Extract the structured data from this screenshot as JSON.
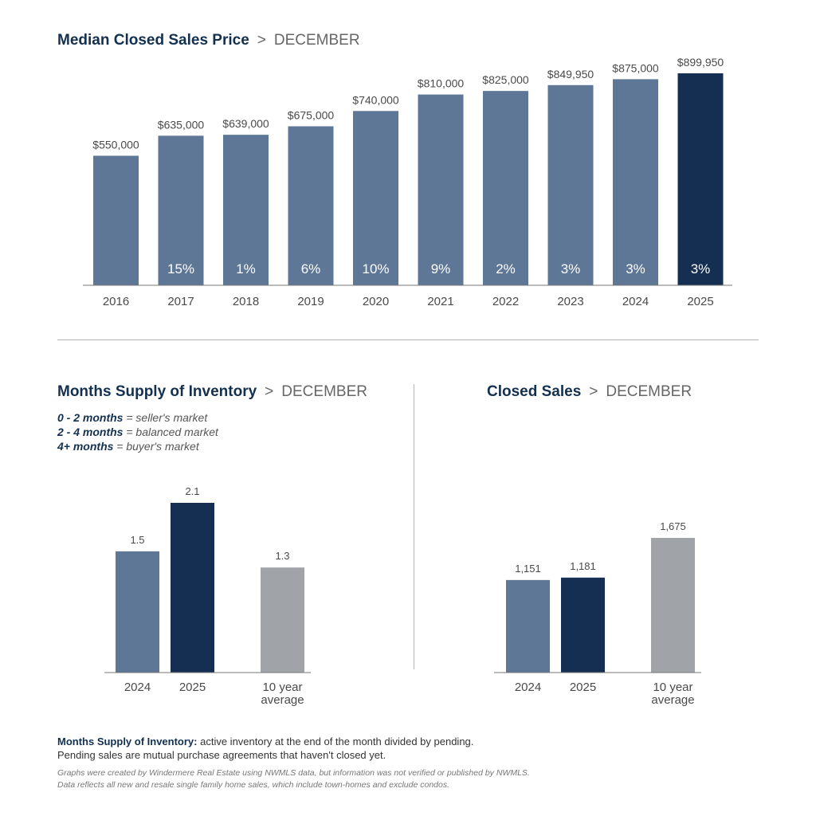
{
  "colors": {
    "bar_prior": "#5e7796",
    "bar_current": "#142f52",
    "bar_average": "#a0a4a9",
    "axis": "#777777",
    "title": "#13304f"
  },
  "sections": {
    "separator": ">"
  },
  "chart_data": [
    {
      "type": "bar",
      "title": "Median Closed Sales Price",
      "subtitle": "DECEMBER",
      "categories": [
        "2016",
        "2017",
        "2018",
        "2019",
        "2020",
        "2021",
        "2022",
        "2023",
        "2024",
        "2025"
      ],
      "values": [
        550000,
        635000,
        639000,
        675000,
        740000,
        810000,
        825000,
        849950,
        875000,
        899950
      ],
      "value_labels": [
        "$550,000",
        "$635,000",
        "$639,000",
        "$675,000",
        "$740,000",
        "$810,000",
        "$825,000",
        "$849,950",
        "$875,000",
        "$899,950"
      ],
      "pct_change_labels": [
        "",
        "15%",
        "1%",
        "6%",
        "10%",
        "9%",
        "2%",
        "3%",
        "3%",
        "3%"
      ],
      "ylim": [
        0,
        900000
      ],
      "grid": false,
      "highlight_last": true
    },
    {
      "type": "bar",
      "title": "Months Supply of Inventory",
      "subtitle": "DECEMBER",
      "categories": [
        "2024",
        "2025",
        "10 year average"
      ],
      "category_lines": [
        [
          "2024"
        ],
        [
          "2025"
        ],
        [
          "10 year",
          "average"
        ]
      ],
      "values": [
        1.5,
        2.1,
        1.3
      ],
      "value_labels": [
        "1.5",
        "2.1",
        "1.3"
      ],
      "ylim": [
        0,
        2.1
      ],
      "grid": false
    },
    {
      "type": "bar",
      "title": "Closed Sales",
      "subtitle": "DECEMBER",
      "categories": [
        "2024",
        "2025",
        "10 year average"
      ],
      "category_lines": [
        [
          "2024"
        ],
        [
          "2025"
        ],
        [
          "10 year",
          "average"
        ]
      ],
      "values": [
        1151,
        1181,
        1675
      ],
      "value_labels": [
        "1,151",
        "1,181",
        "1,675"
      ],
      "ylim": [
        0,
        1675
      ],
      "grid": false
    }
  ],
  "legend": [
    {
      "range": "0 - 2 months",
      "meaning": "= seller's market"
    },
    {
      "range": "2 - 4 months",
      "meaning": "= balanced market"
    },
    {
      "range": "4+ months",
      "meaning": "= buyer's market"
    }
  ],
  "note": {
    "label": "Months Supply of Inventory:",
    "text": " active inventory at the end of the month divided by pending.",
    "line2": "Pending sales are mutual purchase agreements that haven't closed yet."
  },
  "footnote": {
    "line1": "Graphs were created by Windermere Real Estate using NWMLS data, but information was not verified or published by NWMLS.",
    "line2": "Data reflects all new and resale single family home sales, which include town-homes and exclude condos."
  }
}
